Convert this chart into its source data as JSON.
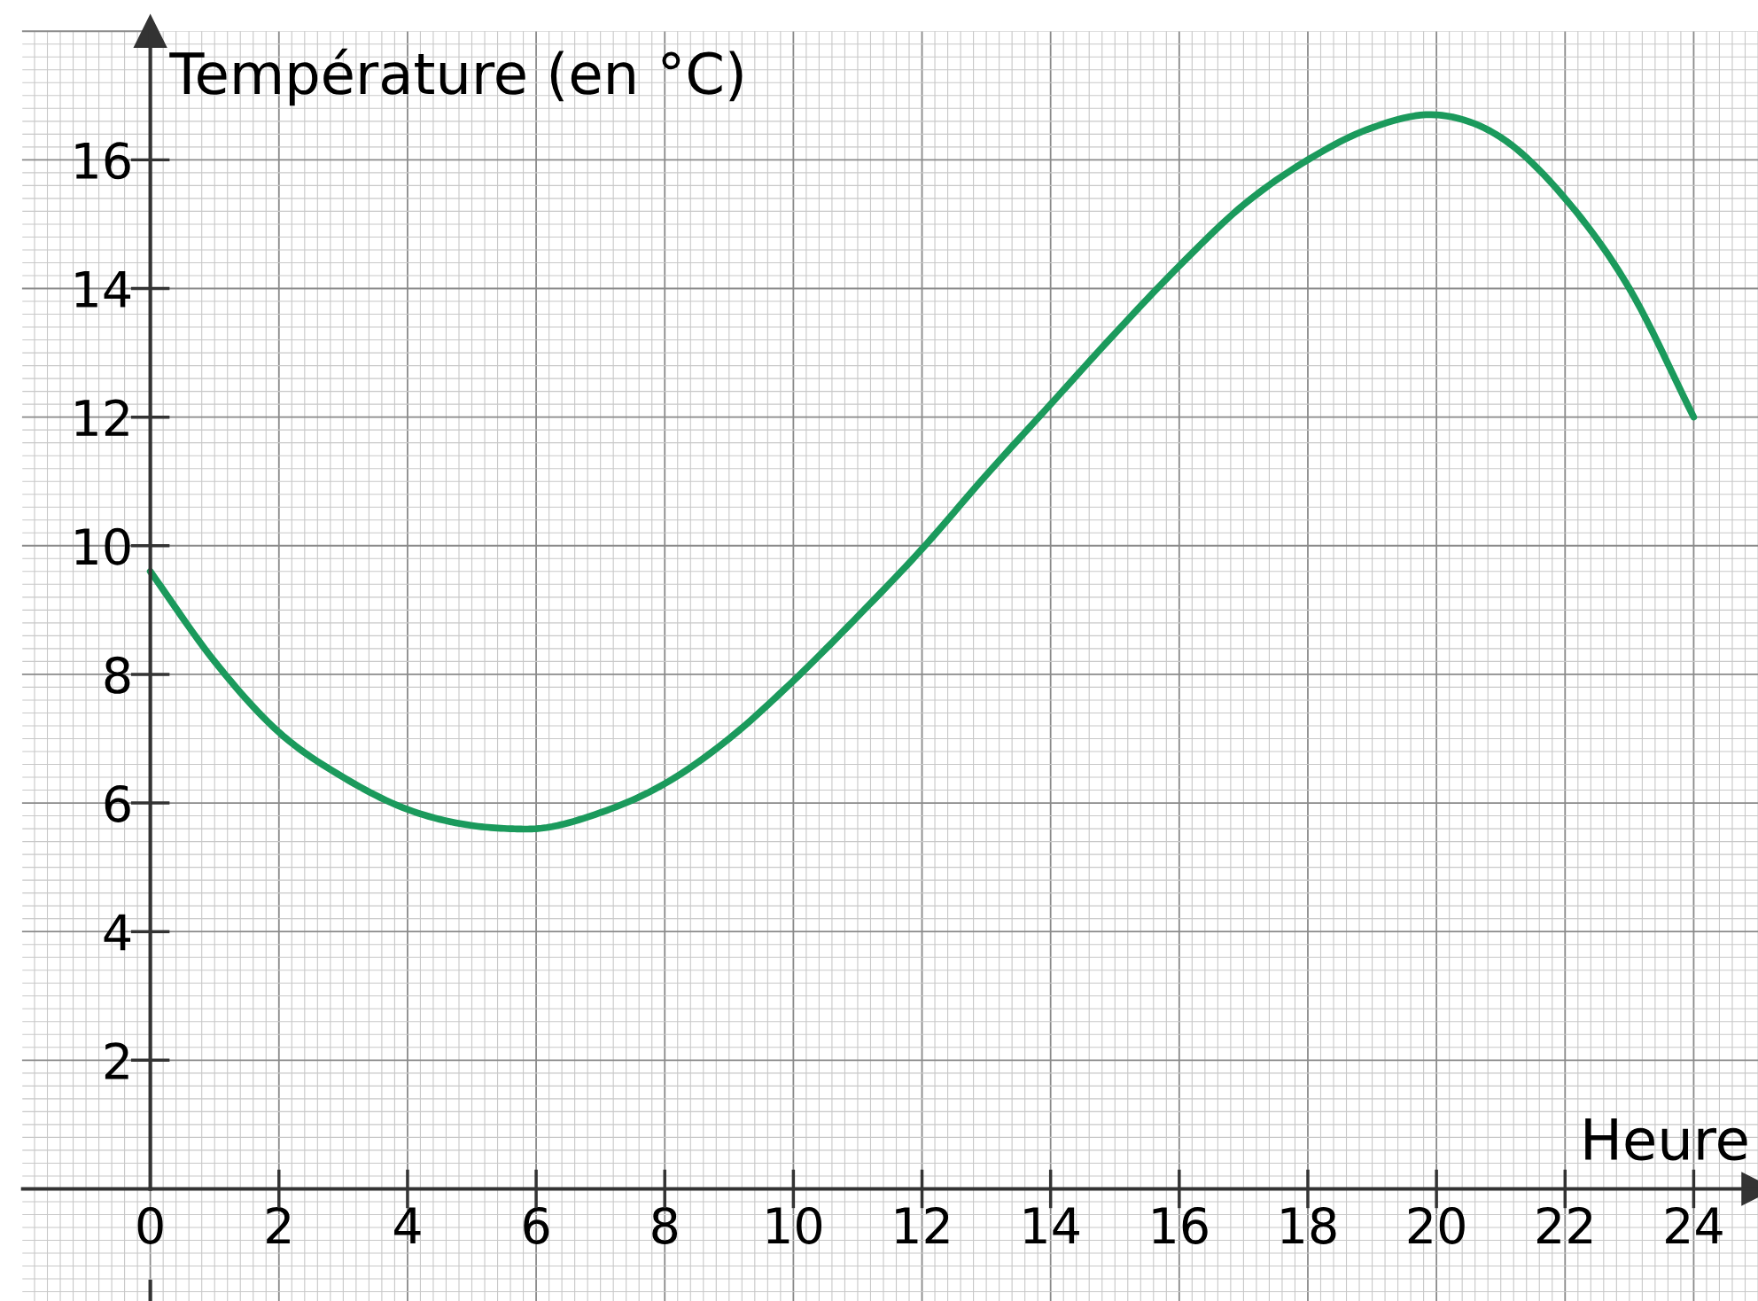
{
  "chart_data": {
    "type": "line",
    "xlabel": "Heure",
    "ylabel": "Température (en °C)",
    "x": [
      0,
      1,
      2,
      3,
      4,
      5,
      5.6,
      6,
      7,
      8,
      9,
      10,
      11,
      12,
      13,
      14,
      15,
      16,
      17,
      18,
      19,
      20,
      21,
      22,
      23,
      24
    ],
    "series": [
      {
        "color": "#1b9a5c",
        "values": [
          9.6,
          8.2,
          7.1,
          6.4,
          5.9,
          5.65,
          5.6,
          5.6,
          5.85,
          6.3,
          7.0,
          7.9,
          8.9,
          9.95,
          11.1,
          12.2,
          13.3,
          14.35,
          15.3,
          16.0,
          16.5,
          16.7,
          16.35,
          15.4,
          14.0,
          12.0
        ]
      }
    ],
    "xlim": [
      0,
      25
    ],
    "ylim": [
      0,
      18
    ],
    "xticks": [
      {
        "value": 0,
        "label": "0"
      },
      2,
      4,
      6,
      8,
      10,
      12,
      14,
      16,
      18,
      20,
      22,
      24
    ],
    "yticks": [
      2,
      4,
      6,
      8,
      10,
      12,
      14,
      16
    ],
    "grid": true,
    "marker": "none",
    "line_style": "solid",
    "legend": false
  }
}
